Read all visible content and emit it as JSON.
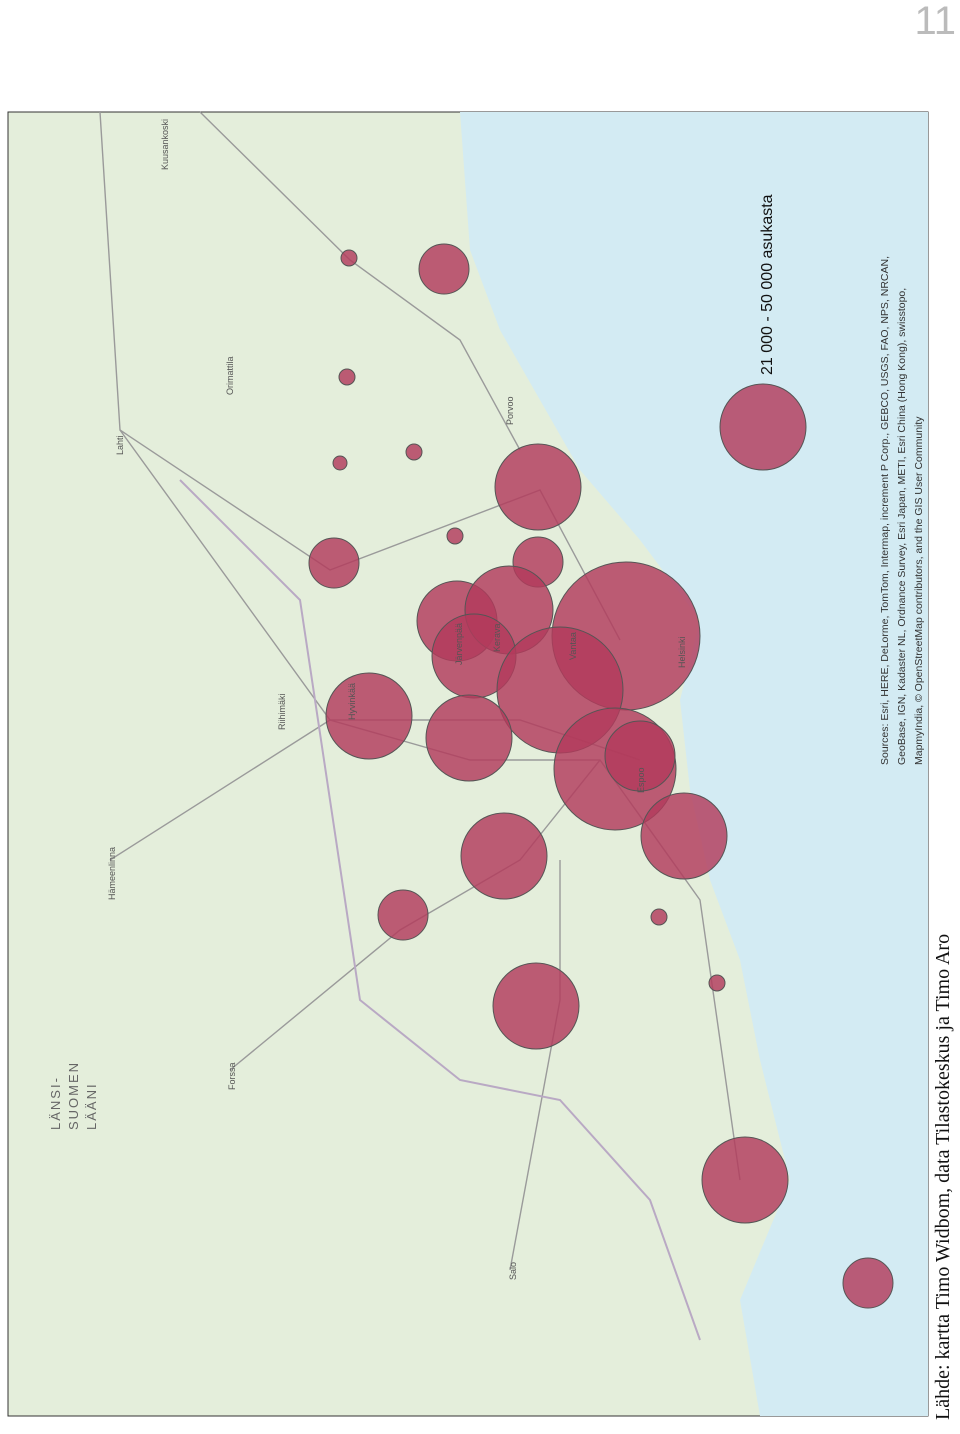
{
  "page_number": "11",
  "map": {
    "legend": "21 000 - 50 000 asukasta",
    "region": [
      "LÄNSI-",
      "SUOMEN",
      "LÄÄNI"
    ],
    "places": [
      "Helsinki",
      "Espoo",
      "Vantaa",
      "Kerava",
      "Järvenpää",
      "Hyvinkää",
      "Riihimäki",
      "Lahti",
      "Porvoo",
      "Orimattila",
      "Hämeenlinna",
      "Forssa",
      "Salo",
      "Kuusankoski"
    ],
    "sources": [
      "Sources: Esri, HERE, DeLorme, TomTom, Intermap, increment P Corp., GEBCO, USGS, FAO, NPS, NRCAN,",
      "GeoBase, IGN, Kadaster NL, Ordnance Survey, Esri Japan, METI, Esri China (Hong Kong), swisstopo,",
      "MapmyIndia, © OpenStreetMap contributors, and the GIS User Community"
    ]
  },
  "caption": "Lähde: kartta Timo Widbom, data Tilastokeskus ja Timo Aro"
}
